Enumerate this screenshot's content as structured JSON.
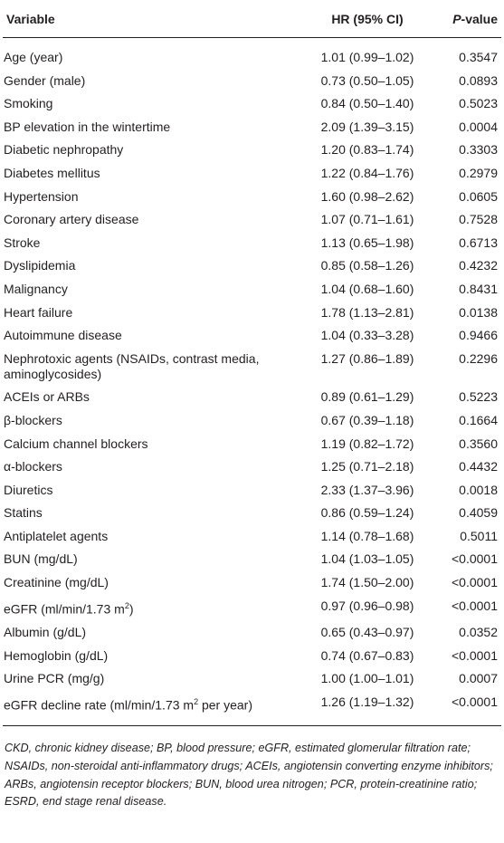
{
  "table": {
    "headers": {
      "variable": "Variable",
      "hr": "HR (95% CI)",
      "p_italic": "P",
      "p_rest": "-value"
    },
    "rows": [
      {
        "variable": "Age (year)",
        "hr": "1.01 (0.99–1.02)",
        "p": "0.3547"
      },
      {
        "variable": "Gender (male)",
        "hr": "0.73 (0.50–1.05)",
        "p": "0.0893"
      },
      {
        "variable": "Smoking",
        "hr": "0.84 (0.50–1.40)",
        "p": "0.5023"
      },
      {
        "variable": "BP elevation in the wintertime",
        "hr": "2.09 (1.39–3.15)",
        "p": "0.0004"
      },
      {
        "variable": "Diabetic nephropathy",
        "hr": "1.20 (0.83–1.74)",
        "p": "0.3303"
      },
      {
        "variable": "Diabetes mellitus",
        "hr": "1.22 (0.84–1.76)",
        "p": "0.2979"
      },
      {
        "variable": "Hypertension",
        "hr": "1.60 (0.98–2.62)",
        "p": "0.0605"
      },
      {
        "variable": "Coronary artery disease",
        "hr": "1.07 (0.71–1.61)",
        "p": "0.7528"
      },
      {
        "variable": "Stroke",
        "hr": "1.13 (0.65–1.98)",
        "p": "0.6713"
      },
      {
        "variable": "Dyslipidemia",
        "hr": "0.85 (0.58–1.26)",
        "p": "0.4232"
      },
      {
        "variable": "Malignancy",
        "hr": "1.04 (0.68–1.60)",
        "p": "0.8431"
      },
      {
        "variable": "Heart failure",
        "hr": "1.78 (1.13–2.81)",
        "p": "0.0138"
      },
      {
        "variable": "Autoimmune disease",
        "hr": "1.04 (0.33–3.28)",
        "p": "0.9466"
      },
      {
        "variable": "Nephrotoxic agents (NSAIDs, contrast media, aminoglycosides)",
        "hr": "1.27 (0.86–1.89)",
        "p": "0.2296"
      },
      {
        "variable": "ACEIs or ARBs",
        "hr": "0.89 (0.61–1.29)",
        "p": "0.5223"
      },
      {
        "variable": "β-blockers",
        "hr": "0.67 (0.39–1.18)",
        "p": "0.1664"
      },
      {
        "variable": "Calcium channel blockers",
        "hr": "1.19 (0.82–1.72)",
        "p": "0.3560"
      },
      {
        "variable": "α-blockers",
        "hr": "1.25 (0.71–2.18)",
        "p": "0.4432"
      },
      {
        "variable": "Diuretics",
        "hr": "2.33 (1.37–3.96)",
        "p": "0.0018"
      },
      {
        "variable": "Statins",
        "hr": "0.86 (0.59–1.24)",
        "p": "0.4059"
      },
      {
        "variable": "Antiplatelet agents",
        "hr": "1.14 (0.78–1.68)",
        "p": "0.5011"
      },
      {
        "variable": "BUN (mg/dL)",
        "hr": "1.04 (1.03–1.05)",
        "p": "<0.0001"
      },
      {
        "variable": "Creatinine (mg/dL)",
        "hr": "1.74 (1.50–2.00)",
        "p": "<0.0001"
      },
      {
        "variable": "eGFR (ml/min/1.73 m",
        "sup": "2",
        "after": ")",
        "hr": "0.97 (0.96–0.98)",
        "p": "<0.0001"
      },
      {
        "variable": "Albumin (g/dL)",
        "hr": "0.65 (0.43–0.97)",
        "p": "0.0352"
      },
      {
        "variable": "Hemoglobin (g/dL)",
        "hr": "0.74 (0.67–0.83)",
        "p": "<0.0001"
      },
      {
        "variable": "Urine PCR (mg/g)",
        "hr": "1.00 (1.00–1.01)",
        "p": "0.0007"
      },
      {
        "variable": "eGFR decline rate (ml/min/1.73 m",
        "sup": "2",
        "after": " per year)",
        "hr": "1.26 (1.19–1.32)",
        "p": "<0.0001"
      }
    ]
  },
  "footnote": "CKD, chronic kidney disease; BP, blood pressure; eGFR, estimated glomerular filtration rate; NSAIDs, non-steroidal anti-inflammatory drugs; ACEIs, angiotensin converting enzyme inhibitors; ARBs, angiotensin receptor blockers; BUN, blood urea nitrogen; PCR, protein-creatinine ratio; ESRD, end stage renal disease."
}
